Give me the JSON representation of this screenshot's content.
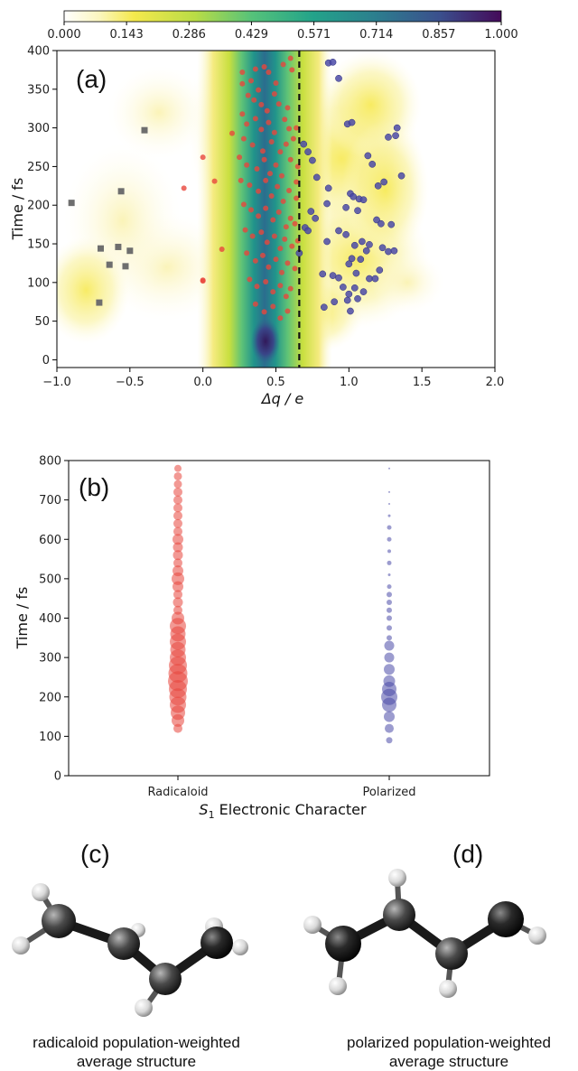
{
  "colorbar": {
    "ticks": [
      "0.000",
      "0.143",
      "0.286",
      "0.429",
      "0.571",
      "0.714",
      "0.857",
      "1.000"
    ]
  },
  "panel_a": {
    "label": "(a)",
    "xlabel": "Δq / e",
    "ylabel": "Time / fs",
    "xticks": [
      "−1.0",
      "−0.5",
      "0.0",
      "0.5",
      "1.0",
      "1.5",
      "2.0"
    ],
    "yticks": [
      "0",
      "50",
      "100",
      "150",
      "200",
      "250",
      "300",
      "350",
      "400"
    ]
  },
  "panel_b": {
    "label": "(b)",
    "xlabel_italic": "S",
    "xlabel_sub": "1",
    "xlabel_rest": " Electronic Character",
    "ylabel": "Time / fs",
    "yticks": [
      "0",
      "100",
      "200",
      "300",
      "400",
      "500",
      "600",
      "700",
      "800"
    ]
  },
  "panel_c": {
    "label": "(c)",
    "caption_line1": "radicaloid population-weighted",
    "caption_line2": "average structure"
  },
  "panel_d": {
    "label": "(d)",
    "caption_line1": "polarized population-weighted",
    "caption_line2": "average structure"
  },
  "colors": {
    "radicaloid": "#e8463c",
    "polarized": "#4b4aa8",
    "other": "#6e6e6e"
  },
  "chart_data": [
    {
      "type": "heatmap",
      "title": "(a)",
      "xlabel": "Δq / e",
      "ylabel": "Time / fs",
      "xlim": [
        -1.0,
        2.0
      ],
      "ylim": [
        -10,
        400
      ],
      "colorbar_range": [
        0.0,
        1.0
      ],
      "colormap": "viridis_r",
      "dashed_vline_x": 0.66,
      "density_ridge": {
        "x": 0.38,
        "note_values": [
          [
            0.38,
            10,
            1.0
          ],
          [
            0.37,
            100,
            0.72
          ],
          [
            0.37,
            200,
            0.62
          ],
          [
            0.38,
            300,
            0.66
          ],
          [
            0.38,
            390,
            0.7
          ]
        ]
      },
      "series": [
        {
          "name": "radicaloid",
          "marker": "circle",
          "color": "#e8463c",
          "points": [
            [
              0.0,
              103
            ],
            [
              0.08,
              231
            ],
            [
              -0.13,
              222
            ],
            [
              0.0,
              262
            ],
            [
              0.13,
              143
            ],
            [
              0.0,
              102
            ],
            [
              0.27,
              372
            ],
            [
              0.27,
              357
            ],
            [
              0.33,
              361
            ],
            [
              0.36,
              376
            ],
            [
              0.38,
              349
            ],
            [
              0.42,
              379
            ],
            [
              0.45,
              372
            ],
            [
              0.5,
              358
            ],
            [
              0.55,
              382
            ],
            [
              0.6,
              390
            ],
            [
              0.61,
              375
            ],
            [
              0.31,
              342
            ],
            [
              0.35,
              336
            ],
            [
              0.4,
              330
            ],
            [
              0.44,
              322
            ],
            [
              0.49,
              344
            ],
            [
              0.52,
              331
            ],
            [
              0.58,
              326
            ],
            [
              0.27,
              318
            ],
            [
              0.3,
              305
            ],
            [
              0.36,
              312
            ],
            [
              0.4,
              298
            ],
            [
              0.45,
              307
            ],
            [
              0.49,
              294
            ],
            [
              0.56,
              311
            ],
            [
              0.59,
              299
            ],
            [
              0.2,
              293
            ],
            [
              0.28,
              286
            ],
            [
              0.34,
              278
            ],
            [
              0.41,
              270
            ],
            [
              0.47,
              282
            ],
            [
              0.53,
              269
            ],
            [
              0.57,
              279
            ],
            [
              0.62,
              286
            ],
            [
              0.25,
              262
            ],
            [
              0.3,
              252
            ],
            [
              0.37,
              247
            ],
            [
              0.42,
              259
            ],
            [
              0.46,
              241
            ],
            [
              0.5,
              252
            ],
            [
              0.54,
              238
            ],
            [
              0.6,
              259
            ],
            [
              0.26,
              232
            ],
            [
              0.32,
              226
            ],
            [
              0.38,
              218
            ],
            [
              0.43,
              232
            ],
            [
              0.47,
              212
            ],
            [
              0.51,
              224
            ],
            [
              0.55,
              205
            ],
            [
              0.59,
              219
            ],
            [
              0.64,
              230
            ],
            [
              0.28,
              201
            ],
            [
              0.33,
              194
            ],
            [
              0.38,
              186
            ],
            [
              0.43,
              196
            ],
            [
              0.48,
              181
            ],
            [
              0.52,
              191
            ],
            [
              0.57,
              172
            ],
            [
              0.6,
              183
            ],
            [
              0.29,
              168
            ],
            [
              0.34,
              160
            ],
            [
              0.4,
              165
            ],
            [
              0.44,
              152
            ],
            [
              0.49,
              160
            ],
            [
              0.53,
              144
            ],
            [
              0.56,
              156
            ],
            [
              0.61,
              147
            ],
            [
              0.3,
              138
            ],
            [
              0.36,
              128
            ],
            [
              0.41,
              135
            ],
            [
              0.45,
              120
            ],
            [
              0.5,
              130
            ],
            [
              0.54,
              113
            ],
            [
              0.58,
              125
            ],
            [
              0.63,
              118
            ],
            [
              0.32,
              104
            ],
            [
              0.37,
              95
            ],
            [
              0.43,
              101
            ],
            [
              0.48,
              88
            ],
            [
              0.53,
              96
            ],
            [
              0.57,
              82
            ],
            [
              0.6,
              92
            ],
            [
              0.36,
              72
            ],
            [
              0.42,
              62
            ],
            [
              0.48,
              69
            ],
            [
              0.53,
              54
            ],
            [
              0.58,
              63
            ],
            [
              0.65,
              154
            ],
            [
              0.63,
              176
            ],
            [
              0.64,
              209
            ],
            [
              0.65,
              250
            ],
            [
              0.64,
              300
            ]
          ]
        },
        {
          "name": "polarized",
          "marker": "circle",
          "color": "#4b4aa8",
          "points": [
            [
              0.86,
              384
            ],
            [
              0.89,
              385
            ],
            [
              0.93,
              364
            ],
            [
              0.99,
              305
            ],
            [
              1.02,
              307
            ],
            [
              1.27,
              288
            ],
            [
              1.33,
              300
            ],
            [
              1.32,
              290
            ],
            [
              0.69,
              279
            ],
            [
              0.72,
              269
            ],
            [
              0.75,
              258
            ],
            [
              1.13,
              264
            ],
            [
              1.16,
              253
            ],
            [
              1.36,
              238
            ],
            [
              0.78,
              236
            ],
            [
              1.2,
              225
            ],
            [
              1.24,
              230
            ],
            [
              0.86,
              222
            ],
            [
              1.01,
              215
            ],
            [
              1.03,
              211
            ],
            [
              1.07,
              208
            ],
            [
              1.1,
              207
            ],
            [
              0.85,
              202
            ],
            [
              0.74,
              192
            ],
            [
              0.77,
              183
            ],
            [
              0.98,
              197
            ],
            [
              1.06,
              193
            ],
            [
              1.19,
              181
            ],
            [
              1.22,
              176
            ],
            [
              1.29,
              175
            ],
            [
              0.7,
              171
            ],
            [
              0.72,
              167
            ],
            [
              0.93,
              167
            ],
            [
              0.98,
              162
            ],
            [
              0.85,
              153
            ],
            [
              1.09,
              153
            ],
            [
              1.14,
              149
            ],
            [
              1.23,
              145
            ],
            [
              1.27,
              140
            ],
            [
              1.31,
              141
            ],
            [
              0.66,
              138
            ],
            [
              1.02,
              131
            ],
            [
              1.08,
              130
            ],
            [
              1.04,
              148
            ],
            [
              1.12,
              141
            ],
            [
              1.0,
              124
            ],
            [
              0.82,
              111
            ],
            [
              0.89,
              109
            ],
            [
              0.93,
              106
            ],
            [
              1.05,
              112
            ],
            [
              1.21,
              116
            ],
            [
              1.14,
              105
            ],
            [
              1.18,
              105
            ],
            [
              0.96,
              94
            ],
            [
              1.04,
              93
            ],
            [
              1.1,
              88
            ],
            [
              1.0,
              85
            ],
            [
              1.06,
              79
            ],
            [
              0.99,
              77
            ],
            [
              0.9,
              75
            ],
            [
              1.01,
              63
            ],
            [
              0.83,
              68
            ]
          ]
        },
        {
          "name": "other",
          "marker": "square",
          "color": "#6e6e6e",
          "points": [
            [
              -0.4,
              297
            ],
            [
              -0.56,
              218
            ],
            [
              -0.9,
              203
            ],
            [
              -0.7,
              144
            ],
            [
              -0.58,
              146
            ],
            [
              -0.5,
              141
            ],
            [
              -0.64,
              123
            ],
            [
              -0.53,
              121
            ],
            [
              -0.71,
              74
            ]
          ]
        }
      ]
    },
    {
      "type": "scatter",
      "title": "(b)",
      "xlabel": "S1 Electronic Character",
      "ylabel": "Time / fs",
      "categories": [
        "Radicaloid",
        "Polarized"
      ],
      "ylim": [
        0,
        800
      ],
      "size_encodes": "population",
      "series": [
        {
          "name": "Radicaloid",
          "color": "#e8463c",
          "times": [
            120,
            140,
            160,
            180,
            200,
            220,
            240,
            260,
            280,
            300,
            320,
            340,
            360,
            380,
            400,
            420,
            440,
            460,
            480,
            500,
            520,
            540,
            560,
            580,
            600,
            620,
            640,
            660,
            680,
            700,
            720,
            740,
            760,
            780
          ],
          "sizes": [
            5,
            7,
            8,
            9,
            9.5,
            10,
            11,
            10.5,
            10,
            9,
            8.5,
            9,
            8.5,
            9,
            7,
            5,
            5.5,
            5,
            6,
            7,
            6,
            5,
            5.5,
            5.5,
            6,
            5,
            5,
            5,
            5,
            5,
            5,
            4.5,
            4.5,
            4
          ]
        },
        {
          "name": "Polarized",
          "color": "#4b4aa8",
          "times": [
            90,
            120,
            150,
            180,
            200,
            220,
            240,
            270,
            300,
            330,
            350,
            375,
            400,
            420,
            440,
            460,
            480,
            510,
            540,
            570,
            600,
            630,
            660,
            690,
            720,
            780
          ],
          "sizes": [
            3.5,
            5,
            6,
            8,
            9,
            8,
            6.5,
            6,
            5.5,
            5.5,
            3,
            3,
            3,
            3,
            3,
            3,
            2.5,
            1.5,
            2.5,
            2,
            2.5,
            2.5,
            1.5,
            1,
            1,
            1
          ]
        }
      ]
    }
  ]
}
